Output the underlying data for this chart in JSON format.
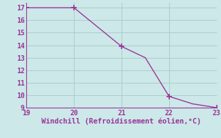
{
  "x": [
    19,
    19.3,
    20,
    21,
    21.5,
    22,
    22.5,
    23
  ],
  "y": [
    17,
    17,
    17,
    13.9,
    13.0,
    9.9,
    9.3,
    9.0
  ],
  "line_color": "#993399",
  "marker_x": [
    19,
    20,
    21,
    22,
    23
  ],
  "marker_y": [
    17,
    17,
    13.9,
    9.9,
    9.0
  ],
  "marker_color": "#993399",
  "background_color": "#cce8e8",
  "grid_color": "#aacccc",
  "axis_color": "#993399",
  "tick_color": "#993399",
  "xlabel": "Windchill (Refroidissement éolien,°C)",
  "xlabel_fontsize": 7.5,
  "xlim": [
    19,
    23
  ],
  "ylim": [
    9,
    17.4
  ],
  "xticks": [
    19,
    20,
    21,
    22,
    23
  ],
  "yticks": [
    9,
    10,
    11,
    12,
    13,
    14,
    15,
    16,
    17
  ],
  "tick_fontsize": 7,
  "line_width": 1.0,
  "marker_size": 3.0
}
